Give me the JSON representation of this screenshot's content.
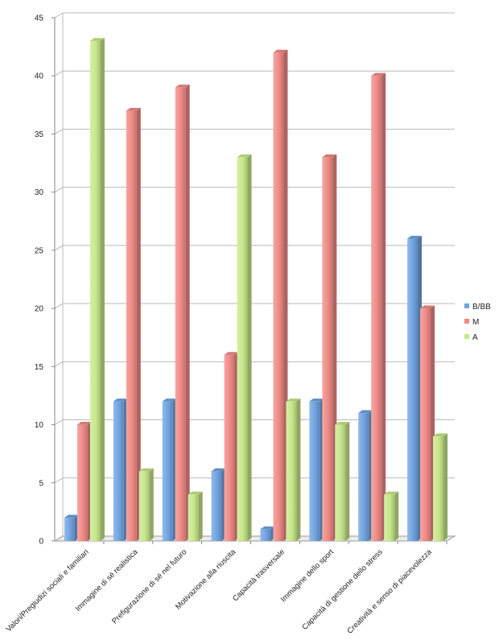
{
  "chart_data": {
    "type": "bar",
    "style": "3d-clustered-column",
    "categories": [
      "Valori/Pregiudizi sociali e familiari",
      "Immagine di sé realistica",
      "Prefigurazione di sé nel futuro",
      "Motivazione alla riuscita",
      "Capacità trasversale",
      "Immagine dello sport",
      "Capacità di gestione dello stress",
      "Creatività e senso di piacevolezza"
    ],
    "series": [
      {
        "name": "B/BB",
        "color": "#6fa3e0",
        "values": [
          2,
          12,
          12,
          6,
          1,
          12,
          11,
          26
        ]
      },
      {
        "name": "M",
        "color": "#f08a86",
        "values": [
          10,
          37,
          39,
          16,
          42,
          33,
          40,
          20
        ]
      },
      {
        "name": "A",
        "color": "#c7e88a",
        "values": [
          43,
          6,
          4,
          33,
          12,
          10,
          4,
          9
        ]
      }
    ],
    "ylim": [
      0,
      45
    ],
    "yticks": [
      "0",
      "5",
      "10",
      "15",
      "20",
      "25",
      "30",
      "35",
      "40",
      "45"
    ],
    "grid": true,
    "legend_position": "right"
  }
}
